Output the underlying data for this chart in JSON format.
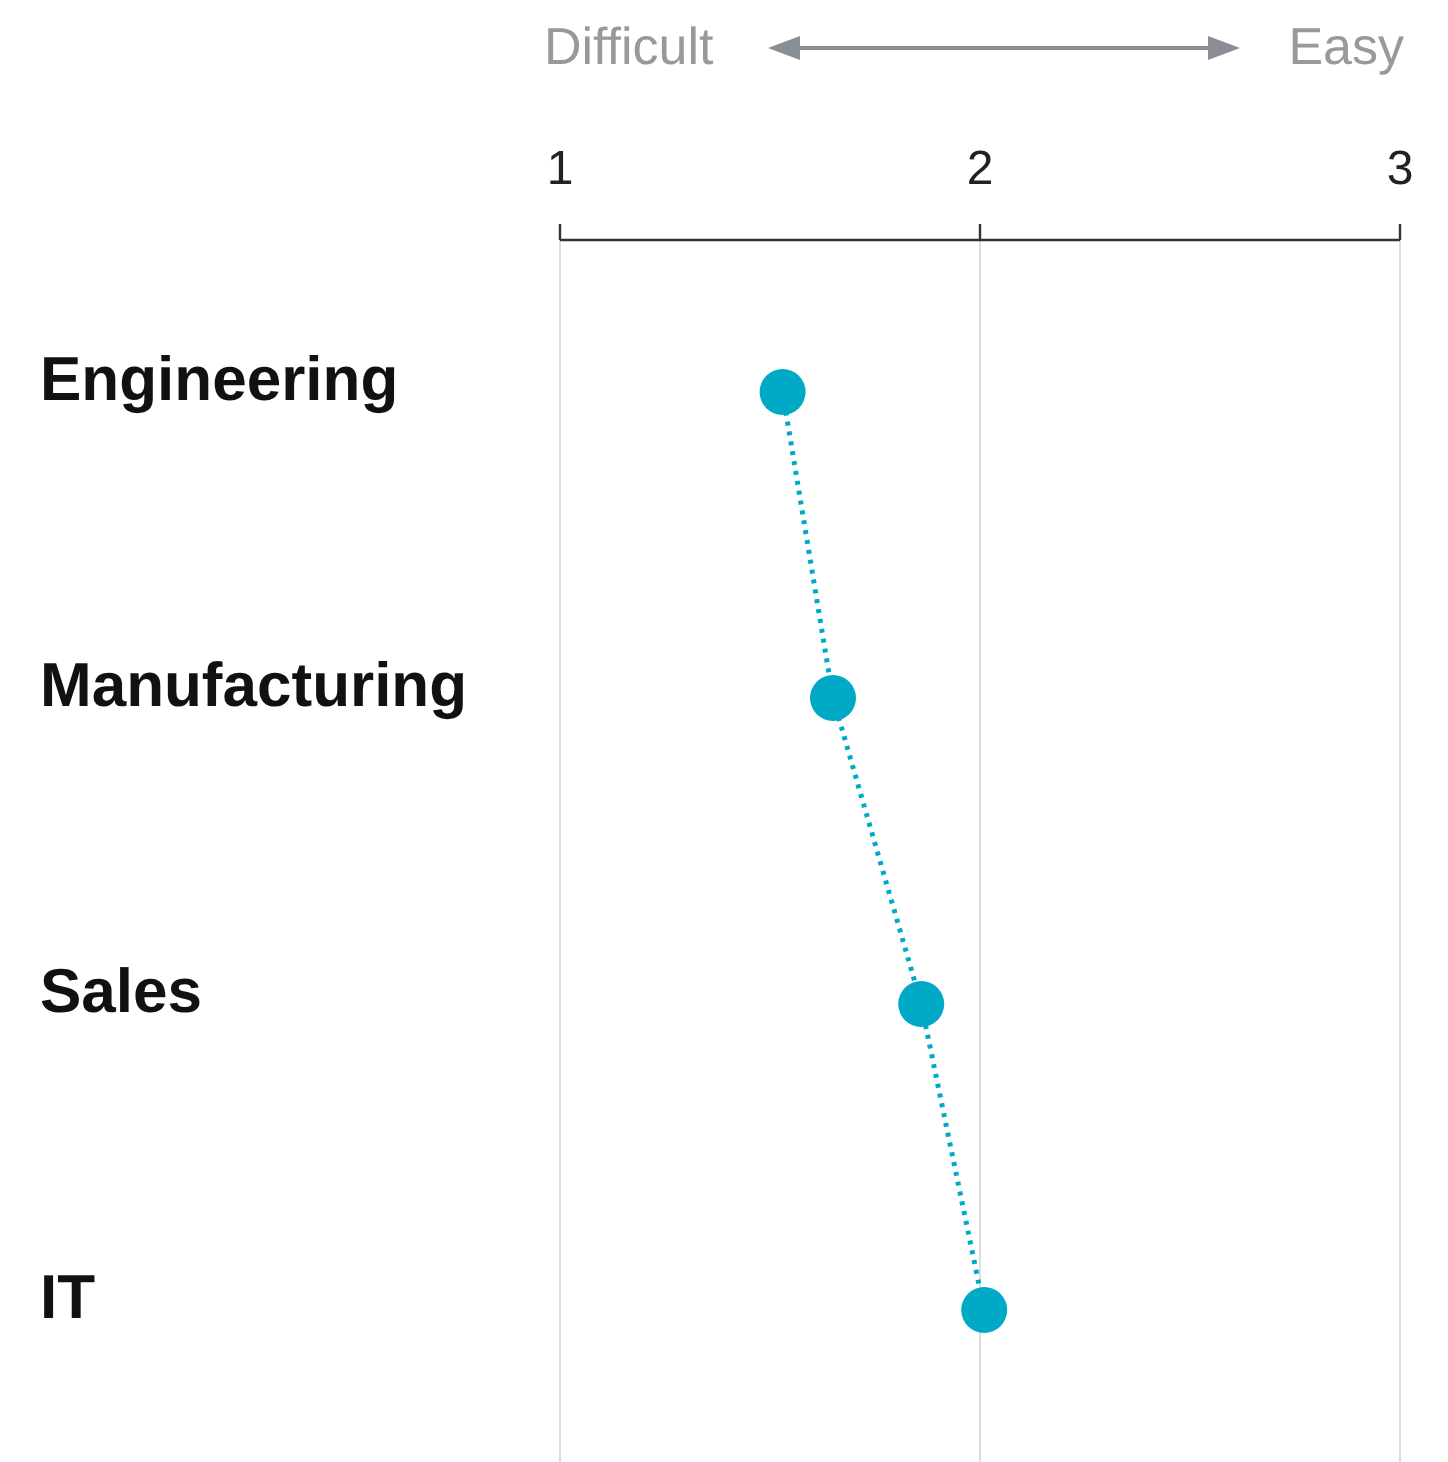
{
  "chart_data": {
    "type": "line",
    "orientation": "horizontal",
    "categories": [
      "Engineering",
      "Manufacturing",
      "Sales",
      "IT"
    ],
    "series": [
      {
        "color": "#00a9c6",
        "values": [
          1.53,
          1.65,
          1.86,
          2.01
        ]
      }
    ],
    "xlim": [
      1,
      3
    ],
    "xticks": [
      1,
      2,
      3
    ],
    "grid": "x",
    "marker": "circle",
    "line_style": "dotted",
    "annotations": [
      "Difficult",
      "Easy"
    ]
  }
}
